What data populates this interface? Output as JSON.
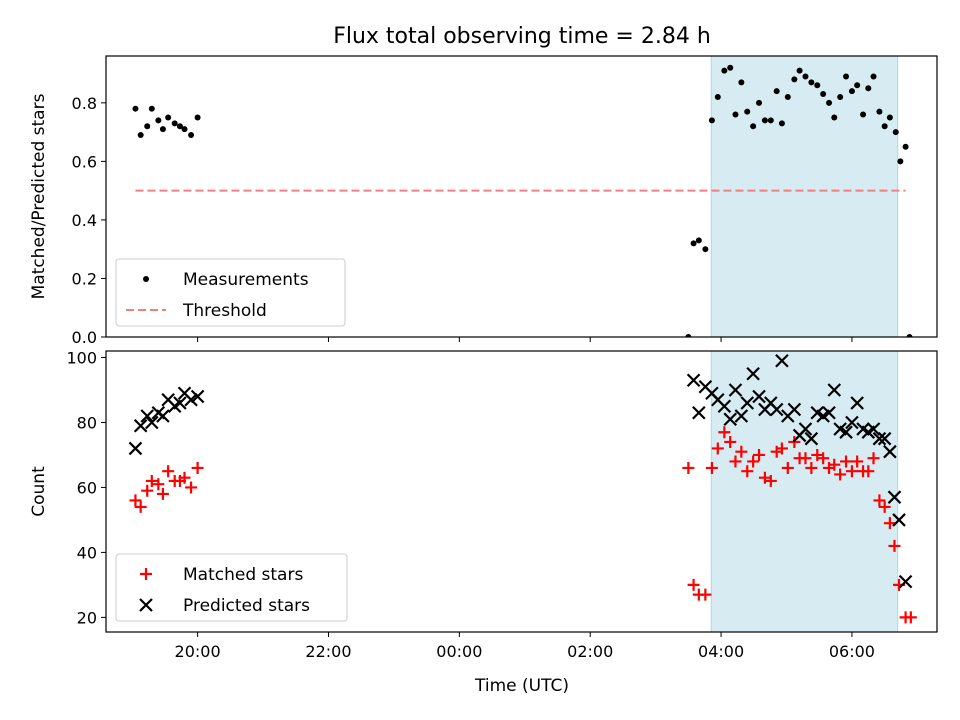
{
  "chart_data": {
    "title": "Flux total observing time = 2.84 h",
    "xlabel": "Time (UTC)",
    "x_unit": "hours of day (UTC), values above 24 are on the following day",
    "xlim": [
      18.6,
      31.3
    ],
    "x_ticks": [
      {
        "label": "20:00",
        "x": 20
      },
      {
        "label": "22:00",
        "x": 22
      },
      {
        "label": "00:00",
        "x": 24
      },
      {
        "label": "02:00",
        "x": 26
      },
      {
        "label": "04:00",
        "x": 28
      },
      {
        "label": "06:00",
        "x": 30
      }
    ],
    "shaded_span": {
      "x_start": 27.85,
      "x_end": 30.7,
      "color": "#add8e6"
    },
    "panels": [
      {
        "type": "scatter",
        "ylabel": "Matched/Predicted stars",
        "ylim": [
          0,
          0.96
        ],
        "y_ticks": [
          0.0,
          0.2,
          0.4,
          0.6,
          0.8
        ],
        "y_tick_labels": [
          "0.0",
          "0.2",
          "0.4",
          "0.6",
          "0.8"
        ],
        "legend": {
          "position": "lower-left",
          "entries": [
            "Measurements",
            "Threshold"
          ]
        },
        "series": [
          {
            "name": "Measurements",
            "marker": "dot",
            "color": "#000000",
            "points": [
              [
                19.05,
                0.78
              ],
              [
                19.13,
                0.69
              ],
              [
                19.23,
                0.72
              ],
              [
                19.3,
                0.78
              ],
              [
                19.4,
                0.74
              ],
              [
                19.47,
                0.71
              ],
              [
                19.55,
                0.75
              ],
              [
                19.65,
                0.73
              ],
              [
                19.73,
                0.72
              ],
              [
                19.8,
                0.71
              ],
              [
                19.9,
                0.69
              ],
              [
                20.0,
                0.75
              ],
              [
                27.5,
                0.0
              ],
              [
                27.58,
                0.32
              ],
              [
                27.66,
                0.33
              ],
              [
                27.76,
                0.3
              ],
              [
                27.86,
                0.74
              ],
              [
                27.95,
                0.82
              ],
              [
                28.05,
                0.91
              ],
              [
                28.14,
                0.92
              ],
              [
                28.22,
                0.76
              ],
              [
                28.31,
                0.87
              ],
              [
                28.4,
                0.77
              ],
              [
                28.49,
                0.72
              ],
              [
                28.58,
                0.8
              ],
              [
                28.67,
                0.74
              ],
              [
                28.76,
                0.74
              ],
              [
                28.85,
                0.84
              ],
              [
                28.93,
                0.73
              ],
              [
                29.02,
                0.82
              ],
              [
                29.12,
                0.88
              ],
              [
                29.2,
                0.91
              ],
              [
                29.29,
                0.89
              ],
              [
                29.38,
                0.87
              ],
              [
                29.47,
                0.86
              ],
              [
                29.56,
                0.83
              ],
              [
                29.65,
                0.8
              ],
              [
                29.73,
                0.75
              ],
              [
                29.82,
                0.82
              ],
              [
                29.91,
                0.89
              ],
              [
                30.0,
                0.84
              ],
              [
                30.08,
                0.86
              ],
              [
                30.17,
                0.76
              ],
              [
                30.25,
                0.85
              ],
              [
                30.33,
                0.89
              ],
              [
                30.42,
                0.77
              ],
              [
                30.5,
                0.72
              ],
              [
                30.58,
                0.75
              ],
              [
                30.67,
                0.7
              ],
              [
                30.74,
                0.6
              ],
              [
                30.82,
                0.65
              ],
              [
                30.88,
                0.0
              ]
            ]
          },
          {
            "name": "Threshold",
            "type": "line",
            "style": "dashed",
            "color": "#f08080",
            "points": [
              [
                19.05,
                0.5
              ],
              [
                30.82,
                0.5
              ]
            ]
          }
        ]
      },
      {
        "type": "scatter",
        "ylabel": "Count",
        "ylim": [
          15.5,
          102
        ],
        "y_ticks": [
          20,
          40,
          60,
          80,
          100
        ],
        "y_tick_labels": [
          "20",
          "40",
          "60",
          "80",
          "100"
        ],
        "legend": {
          "position": "lower-left",
          "entries": [
            "Matched stars",
            "Predicted stars"
          ]
        },
        "series": [
          {
            "name": "Matched stars",
            "marker": "plus",
            "color": "#ff0000",
            "points": [
              [
                19.05,
                56
              ],
              [
                19.13,
                54
              ],
              [
                19.23,
                59
              ],
              [
                19.3,
                62
              ],
              [
                19.4,
                61
              ],
              [
                19.47,
                58
              ],
              [
                19.55,
                65
              ],
              [
                19.65,
                62
              ],
              [
                19.73,
                62
              ],
              [
                19.8,
                63
              ],
              [
                19.9,
                60
              ],
              [
                20.0,
                66
              ],
              [
                27.5,
                66
              ],
              [
                27.58,
                30
              ],
              [
                27.66,
                27
              ],
              [
                27.76,
                27
              ],
              [
                27.86,
                66
              ],
              [
                27.95,
                72
              ],
              [
                28.05,
                77
              ],
              [
                28.14,
                74
              ],
              [
                28.22,
                68
              ],
              [
                28.31,
                71
              ],
              [
                28.4,
                65
              ],
              [
                28.49,
                68
              ],
              [
                28.58,
                70
              ],
              [
                28.67,
                63
              ],
              [
                28.76,
                62
              ],
              [
                28.85,
                71
              ],
              [
                28.93,
                72
              ],
              [
                29.02,
                66
              ],
              [
                29.12,
                74
              ],
              [
                29.2,
                69
              ],
              [
                29.29,
                69
              ],
              [
                29.38,
                66
              ],
              [
                29.47,
                70
              ],
              [
                29.56,
                69
              ],
              [
                29.65,
                66
              ],
              [
                29.73,
                67
              ],
              [
                29.82,
                64
              ],
              [
                29.91,
                68
              ],
              [
                30.0,
                65
              ],
              [
                30.08,
                68
              ],
              [
                30.17,
                65
              ],
              [
                30.25,
                65
              ],
              [
                30.33,
                69
              ],
              [
                30.42,
                56
              ],
              [
                30.5,
                54
              ],
              [
                30.58,
                49
              ],
              [
                30.65,
                42
              ],
              [
                30.72,
                30
              ],
              [
                30.82,
                20
              ],
              [
                30.9,
                20
              ]
            ]
          },
          {
            "name": "Predicted stars",
            "marker": "x",
            "color": "#000000",
            "points": [
              [
                19.05,
                72
              ],
              [
                19.13,
                79
              ],
              [
                19.23,
                82
              ],
              [
                19.3,
                80
              ],
              [
                19.4,
                83
              ],
              [
                19.47,
                82
              ],
              [
                19.55,
                87
              ],
              [
                19.65,
                85
              ],
              [
                19.73,
                86
              ],
              [
                19.8,
                89
              ],
              [
                19.9,
                87
              ],
              [
                20.0,
                88
              ],
              [
                27.58,
                93
              ],
              [
                27.66,
                83
              ],
              [
                27.76,
                91
              ],
              [
                27.86,
                89
              ],
              [
                27.95,
                87
              ],
              [
                28.05,
                85
              ],
              [
                28.14,
                81
              ],
              [
                28.22,
                90
              ],
              [
                28.31,
                82
              ],
              [
                28.4,
                86
              ],
              [
                28.49,
                95
              ],
              [
                28.58,
                88
              ],
              [
                28.67,
                84
              ],
              [
                28.76,
                86
              ],
              [
                28.85,
                84
              ],
              [
                28.93,
                99
              ],
              [
                29.02,
                82
              ],
              [
                29.12,
                84
              ],
              [
                29.2,
                76
              ],
              [
                29.29,
                78
              ],
              [
                29.38,
                75
              ],
              [
                29.47,
                83
              ],
              [
                29.56,
                82
              ],
              [
                29.65,
                83
              ],
              [
                29.73,
                90
              ],
              [
                29.82,
                78
              ],
              [
                29.91,
                77
              ],
              [
                30.0,
                80
              ],
              [
                30.08,
                86
              ],
              [
                30.17,
                78
              ],
              [
                30.25,
                77
              ],
              [
                30.33,
                78
              ],
              [
                30.42,
                75
              ],
              [
                30.5,
                75
              ],
              [
                30.58,
                71
              ],
              [
                30.65,
                57
              ],
              [
                30.72,
                50
              ],
              [
                30.82,
                31
              ]
            ]
          }
        ]
      }
    ]
  }
}
